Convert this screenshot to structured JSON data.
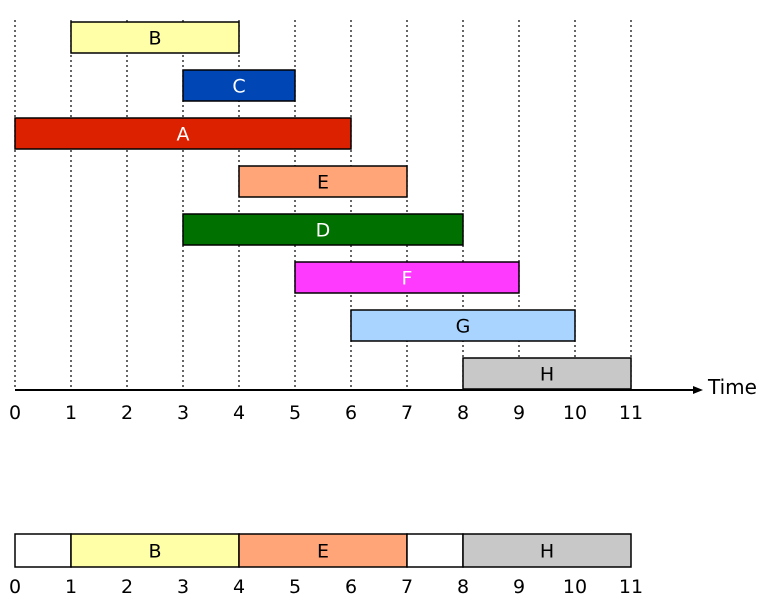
{
  "chart_data": {
    "type": "gantt",
    "xlabel": "Time",
    "x_ticks": [
      0,
      1,
      2,
      3,
      4,
      5,
      6,
      7,
      8,
      9,
      10,
      11
    ],
    "xlim": [
      0,
      11
    ],
    "grid": "vertical dotted lines at each integer time",
    "intervals": [
      {
        "label": "B",
        "start": 1,
        "end": 4,
        "color": "#ffffa8",
        "text_color": "#000000"
      },
      {
        "label": "C",
        "start": 3,
        "end": 5,
        "color": "#0047b5",
        "text_color": "#ffffff"
      },
      {
        "label": "A",
        "start": 0,
        "end": 6,
        "color": "#dc2100",
        "text_color": "#ffffff"
      },
      {
        "label": "E",
        "start": 4,
        "end": 7,
        "color": "#ffa577",
        "text_color": "#000000"
      },
      {
        "label": "D",
        "start": 3,
        "end": 8,
        "color": "#007000",
        "text_color": "#ffffff"
      },
      {
        "label": "F",
        "start": 5,
        "end": 9,
        "color": "#ff3aff",
        "text_color": "#ffffff"
      },
      {
        "label": "G",
        "start": 6,
        "end": 10,
        "color": "#a8d4ff",
        "text_color": "#000000"
      },
      {
        "label": "H",
        "start": 8,
        "end": 11,
        "color": "#c8c8c8",
        "text_color": "#000000"
      }
    ],
    "selection": {
      "range": [
        0,
        11
      ],
      "segments": [
        {
          "label": "",
          "start": 0,
          "end": 1,
          "color": "#ffffff"
        },
        {
          "label": "B",
          "start": 1,
          "end": 4,
          "color": "#ffffa8"
        },
        {
          "label": "E",
          "start": 4,
          "end": 7,
          "color": "#ffa577"
        },
        {
          "label": "",
          "start": 7,
          "end": 8,
          "color": "#ffffff"
        },
        {
          "label": "H",
          "start": 8,
          "end": 11,
          "color": "#c8c8c8"
        }
      ]
    }
  }
}
